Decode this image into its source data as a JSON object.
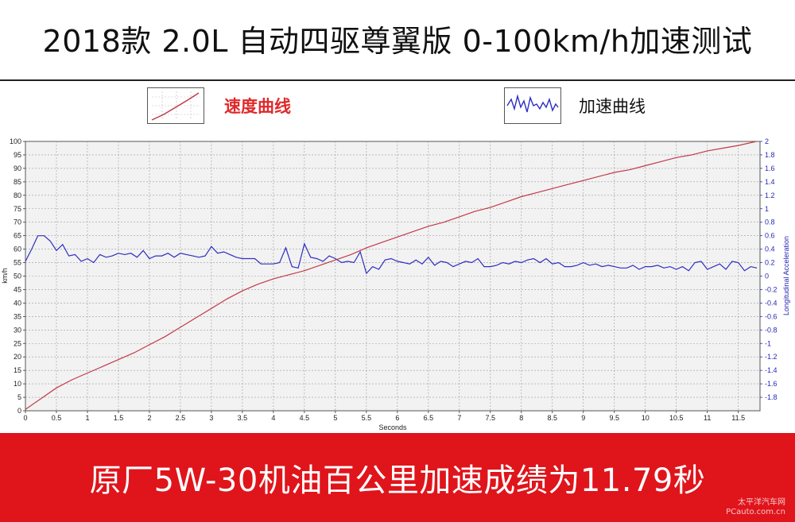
{
  "title": "2018款 2.0L 自动四驱尊翼版 0-100km/h加速测试",
  "legend": {
    "speed_label": "速度曲线",
    "accel_label": "加速曲线"
  },
  "colors": {
    "speed": "#c2394a",
    "accel": "#2e2ec2",
    "banner": "#e0141b"
  },
  "banner_text": "原厂5W-30机油百公里加速成绩为11.79秒",
  "watermark": {
    "line1": "太平洋汽车网",
    "line2": "PCauto.com.cn"
  },
  "chart_data": {
    "type": "line",
    "xlabel": "Seconds",
    "ylabel_left": "km/h",
    "ylabel_right": "Longitudinal Acceleration",
    "xlim": [
      0,
      11.85
    ],
    "ylim_left": [
      0,
      100
    ],
    "ylim_right": [
      -2,
      2
    ],
    "x_ticks": [
      "0",
      "0.5",
      "1",
      "1.5",
      "2",
      "2.5",
      "3",
      "3.5",
      "4",
      "4.5",
      "5",
      "5.5",
      "6",
      "6.5",
      "7",
      "7.5",
      "8",
      "8.5",
      "9",
      "9.5",
      "10",
      "10.5",
      "11",
      "11.5"
    ],
    "y_left_ticks": [
      "0",
      "5",
      "10",
      "15",
      "20",
      "25",
      "30",
      "35",
      "40",
      "45",
      "50",
      "55",
      "60",
      "65",
      "70",
      "75",
      "80",
      "85",
      "90",
      "95",
      "100"
    ],
    "y_right_ticks": [
      "-1.8",
      "-1.6",
      "-1.4",
      "-1.2",
      "-1",
      "-0.8",
      "-0.6",
      "-0.4",
      "-0.2",
      "0",
      "0.2",
      "0.4",
      "0.6",
      "0.8",
      "1",
      "1.2",
      "1.4",
      "1.6",
      "1.8",
      "2"
    ],
    "grid": true,
    "series": [
      {
        "name": "速度曲线",
        "axis": "left",
        "x": [
          0,
          0.25,
          0.5,
          0.75,
          1,
          1.25,
          1.5,
          1.75,
          2,
          2.25,
          2.5,
          2.75,
          3,
          3.25,
          3.5,
          3.75,
          4,
          4.25,
          4.5,
          4.75,
          5,
          5.25,
          5.5,
          5.75,
          6,
          6.25,
          6.5,
          6.75,
          7,
          7.25,
          7.5,
          7.75,
          8,
          8.25,
          8.5,
          8.75,
          9,
          9.25,
          9.5,
          9.75,
          10,
          10.25,
          10.5,
          10.75,
          11,
          11.25,
          11.5,
          11.79
        ],
        "y": [
          0.5,
          4.5,
          8.5,
          11.5,
          14,
          16.5,
          19,
          21.5,
          24.5,
          27.5,
          31,
          34.5,
          38,
          41.5,
          44.5,
          47,
          49,
          50.5,
          52,
          54,
          56,
          58,
          60.5,
          62.5,
          64.5,
          66.5,
          68.5,
          70,
          72,
          74,
          75.5,
          77.5,
          79.5,
          81,
          82.5,
          84,
          85.5,
          87,
          88.5,
          89.5,
          91,
          92.5,
          94,
          95,
          96.5,
          97.5,
          98.5,
          100
        ]
      },
      {
        "name": "加速曲线",
        "axis": "right",
        "x": [
          0,
          0.1,
          0.2,
          0.3,
          0.4,
          0.5,
          0.6,
          0.7,
          0.8,
          0.9,
          1,
          1.1,
          1.2,
          1.3,
          1.4,
          1.5,
          1.6,
          1.7,
          1.8,
          1.9,
          2,
          2.1,
          2.2,
          2.3,
          2.4,
          2.5,
          2.6,
          2.7,
          2.8,
          2.9,
          3,
          3.1,
          3.2,
          3.3,
          3.4,
          3.5,
          3.6,
          3.7,
          3.8,
          3.9,
          4,
          4.1,
          4.2,
          4.3,
          4.4,
          4.5,
          4.6,
          4.7,
          4.8,
          4.9,
          5,
          5.1,
          5.2,
          5.3,
          5.4,
          5.5,
          5.6,
          5.7,
          5.8,
          5.9,
          6,
          6.1,
          6.2,
          6.3,
          6.4,
          6.5,
          6.6,
          6.7,
          6.8,
          6.9,
          7,
          7.1,
          7.2,
          7.3,
          7.4,
          7.5,
          7.6,
          7.7,
          7.8,
          7.9,
          8,
          8.1,
          8.2,
          8.3,
          8.4,
          8.5,
          8.6,
          8.7,
          8.8,
          8.9,
          9,
          9.1,
          9.2,
          9.3,
          9.4,
          9.5,
          9.6,
          9.7,
          9.8,
          9.9,
          10,
          10.1,
          10.2,
          10.3,
          10.4,
          10.5,
          10.6,
          10.7,
          10.8,
          10.9,
          11,
          11.1,
          11.2,
          11.3,
          11.4,
          11.5,
          11.6,
          11.7,
          11.8
        ],
        "y": [
          0.22,
          0.4,
          0.6,
          0.6,
          0.52,
          0.38,
          0.47,
          0.3,
          0.32,
          0.22,
          0.26,
          0.2,
          0.32,
          0.28,
          0.3,
          0.34,
          0.32,
          0.34,
          0.28,
          0.38,
          0.26,
          0.3,
          0.3,
          0.34,
          0.28,
          0.34,
          0.32,
          0.3,
          0.28,
          0.3,
          0.44,
          0.34,
          0.36,
          0.32,
          0.28,
          0.26,
          0.26,
          0.26,
          0.18,
          0.18,
          0.18,
          0.2,
          0.42,
          0.14,
          0.12,
          0.48,
          0.28,
          0.26,
          0.22,
          0.3,
          0.26,
          0.2,
          0.22,
          0.2,
          0.36,
          0.04,
          0.14,
          0.1,
          0.24,
          0.26,
          0.22,
          0.2,
          0.18,
          0.24,
          0.18,
          0.28,
          0.16,
          0.22,
          0.2,
          0.14,
          0.18,
          0.22,
          0.2,
          0.26,
          0.14,
          0.14,
          0.16,
          0.2,
          0.18,
          0.22,
          0.2,
          0.24,
          0.26,
          0.2,
          0.26,
          0.18,
          0.2,
          0.14,
          0.14,
          0.16,
          0.2,
          0.16,
          0.18,
          0.14,
          0.16,
          0.14,
          0.12,
          0.12,
          0.16,
          0.1,
          0.14,
          0.14,
          0.16,
          0.12,
          0.14,
          0.1,
          0.14,
          0.08,
          0.2,
          0.22,
          0.1,
          0.14,
          0.18,
          0.1,
          0.22,
          0.2,
          0.08,
          0.14,
          0.12
        ]
      }
    ]
  }
}
